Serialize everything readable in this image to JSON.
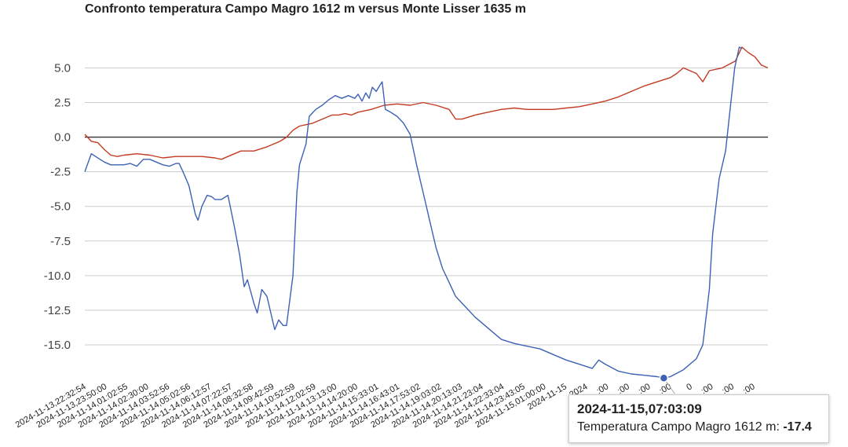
{
  "chart_data": {
    "type": "line",
    "title": "Confronto temperatura Campo Magro 1612 m versus Monte Lisser 1635 m",
    "ylim": [
      -17.5,
      6.5
    ],
    "yticks": [
      5.0,
      2.5,
      0.0,
      -2.5,
      -5.0,
      -7.5,
      -10.0,
      -12.5,
      -15.0
    ],
    "ytick_labels": [
      "5.0",
      "2.5",
      "0.0",
      "-2.5",
      "-5.0",
      "-7.5",
      "-10.0",
      "-12.5",
      "-15.0"
    ],
    "grid": true,
    "legend": "none",
    "x_labels": [
      "2024-11-13,22:32:54",
      "2024-11-13,23:50:00",
      "2024-11-14,01:02:55",
      "2024-11-14,02:30:00",
      "2024-11-14,03:52:56",
      "2024-11-14,05:02:56",
      "2024-11-14,06:12:57",
      "2024-11-14,07:22:57",
      "2024-11-14,08:32:58",
      "2024-11-14,09:42:59",
      "2024-11-14,10:52:59",
      "2024-11-14,12:02:59",
      "2024-11-14,13:13:00",
      "2024-11-14,14:20:00",
      "2024-11-14,15:33:01",
      "2024-11-14,16:43:01",
      "2024-11-14,17:53:02",
      "2024-11-14,19:03:02",
      "2024-11-14,20:13:03",
      "2024-11-14,21:23:04",
      "2024-11-14,22:33:04",
      "2024-11-14,23:43:05",
      "2024-11-15,01:00:00",
      "2024-11-15",
      "2024",
      ":00",
      ":00",
      ":00",
      ":00",
      "0",
      ":00",
      ":00",
      ":00"
    ],
    "series": [
      {
        "name": "Temperatura Campo Magro 1612 m",
        "color": "#3d61b5",
        "points": [
          [
            0,
            -2.5
          ],
          [
            1,
            -1.2
          ],
          [
            3,
            -1.8
          ],
          [
            4,
            -2.0
          ],
          [
            6,
            -2.0
          ],
          [
            7,
            -1.9
          ],
          [
            8,
            -2.1
          ],
          [
            9,
            -1.6
          ],
          [
            10,
            -1.6
          ],
          [
            11,
            -1.8
          ],
          [
            12,
            -2.0
          ],
          [
            13,
            -2.1
          ],
          [
            14,
            -1.9
          ],
          [
            14.5,
            -1.9
          ],
          [
            15,
            -2.4
          ],
          [
            16,
            -3.5
          ],
          [
            17,
            -5.6
          ],
          [
            17.4,
            -6.0
          ],
          [
            18,
            -5.0
          ],
          [
            18.8,
            -4.2
          ],
          [
            19.5,
            -4.3
          ],
          [
            20,
            -4.5
          ],
          [
            21,
            -4.5
          ],
          [
            22,
            -4.2
          ],
          [
            23,
            -6.5
          ],
          [
            23.8,
            -8.5
          ],
          [
            24.5,
            -10.8
          ],
          [
            25,
            -10.3
          ],
          [
            26,
            -12.0
          ],
          [
            26.5,
            -12.7
          ],
          [
            27.2,
            -11.0
          ],
          [
            28,
            -11.5
          ],
          [
            28.5,
            -12.5
          ],
          [
            29.2,
            -13.9
          ],
          [
            29.8,
            -13.2
          ],
          [
            30.5,
            -13.6
          ],
          [
            31,
            -13.6
          ],
          [
            32,
            -10.0
          ],
          [
            32.6,
            -4.0
          ],
          [
            33,
            -2.0
          ],
          [
            34,
            -0.5
          ],
          [
            34.5,
            1.5
          ],
          [
            35.5,
            2.0
          ],
          [
            36.5,
            2.3
          ],
          [
            37.5,
            2.7
          ],
          [
            38.5,
            3.0
          ],
          [
            39.5,
            2.8
          ],
          [
            40.5,
            3.0
          ],
          [
            41.5,
            2.8
          ],
          [
            42,
            3.1
          ],
          [
            42.6,
            2.6
          ],
          [
            43.2,
            3.2
          ],
          [
            43.7,
            2.8
          ],
          [
            44.2,
            3.6
          ],
          [
            44.8,
            3.3
          ],
          [
            45.3,
            3.7
          ],
          [
            45.7,
            4.0
          ],
          [
            46.2,
            2.0
          ],
          [
            47,
            1.8
          ],
          [
            48,
            1.5
          ],
          [
            49,
            1.0
          ],
          [
            50,
            0.2
          ],
          [
            51,
            -2.0
          ],
          [
            52,
            -4.0
          ],
          [
            53,
            -6.0
          ],
          [
            54,
            -8.0
          ],
          [
            55,
            -9.5
          ],
          [
            56,
            -10.5
          ],
          [
            57,
            -11.5
          ],
          [
            58,
            -12.0
          ],
          [
            60,
            -13.0
          ],
          [
            62,
            -13.8
          ],
          [
            64,
            -14.6
          ],
          [
            66,
            -14.9
          ],
          [
            68,
            -15.1
          ],
          [
            70,
            -15.3
          ],
          [
            72,
            -15.7
          ],
          [
            74,
            -16.1
          ],
          [
            76,
            -16.4
          ],
          [
            78,
            -16.7
          ],
          [
            79,
            -16.1
          ],
          [
            80,
            -16.4
          ],
          [
            82,
            -16.9
          ],
          [
            84,
            -17.1
          ],
          [
            86,
            -17.2
          ],
          [
            88,
            -17.3
          ],
          [
            89,
            -17.4
          ],
          [
            90,
            -17.3
          ],
          [
            92,
            -16.8
          ],
          [
            94,
            -16.0
          ],
          [
            95,
            -15.0
          ],
          [
            96,
            -11.0
          ],
          [
            96.5,
            -7.0
          ],
          [
            97.5,
            -3.0
          ],
          [
            98.5,
            -1.0
          ],
          [
            99.3,
            2.5
          ],
          [
            99.9,
            5.0
          ],
          [
            100.6,
            6.5
          ],
          [
            101,
            6.4
          ]
        ]
      },
      {
        "name": "Monte Lisser 1635 m",
        "color": "#c23b22",
        "points": [
          [
            0,
            0.2
          ],
          [
            1,
            -0.3
          ],
          [
            2,
            -0.4
          ],
          [
            3,
            -0.9
          ],
          [
            4,
            -1.3
          ],
          [
            5,
            -1.4
          ],
          [
            6,
            -1.3
          ],
          [
            8,
            -1.2
          ],
          [
            10,
            -1.3
          ],
          [
            12,
            -1.5
          ],
          [
            14,
            -1.4
          ],
          [
            16,
            -1.4
          ],
          [
            18,
            -1.4
          ],
          [
            20,
            -1.5
          ],
          [
            21,
            -1.6
          ],
          [
            22,
            -1.4
          ],
          [
            24,
            -1.0
          ],
          [
            26,
            -1.0
          ],
          [
            28,
            -0.7
          ],
          [
            30,
            -0.3
          ],
          [
            31,
            0.0
          ],
          [
            32,
            0.5
          ],
          [
            33,
            0.8
          ],
          [
            34,
            0.9
          ],
          [
            35,
            1.0
          ],
          [
            36,
            1.2
          ],
          [
            37,
            1.4
          ],
          [
            38,
            1.6
          ],
          [
            39,
            1.6
          ],
          [
            40,
            1.7
          ],
          [
            41,
            1.6
          ],
          [
            42,
            1.8
          ],
          [
            44,
            2.0
          ],
          [
            46,
            2.3
          ],
          [
            48,
            2.4
          ],
          [
            50,
            2.3
          ],
          [
            52,
            2.5
          ],
          [
            54,
            2.3
          ],
          [
            56,
            2.0
          ],
          [
            57,
            1.3
          ],
          [
            58,
            1.3
          ],
          [
            60,
            1.6
          ],
          [
            62,
            1.8
          ],
          [
            64,
            2.0
          ],
          [
            66,
            2.1
          ],
          [
            68,
            2.0
          ],
          [
            70,
            2.0
          ],
          [
            72,
            2.0
          ],
          [
            74,
            2.1
          ],
          [
            76,
            2.2
          ],
          [
            78,
            2.4
          ],
          [
            80,
            2.6
          ],
          [
            82,
            2.9
          ],
          [
            84,
            3.3
          ],
          [
            86,
            3.7
          ],
          [
            88,
            4.0
          ],
          [
            90,
            4.3
          ],
          [
            91,
            4.6
          ],
          [
            92,
            5.0
          ],
          [
            94,
            4.6
          ],
          [
            95,
            4.0
          ],
          [
            96,
            4.8
          ],
          [
            98,
            5.0
          ],
          [
            100,
            5.5
          ],
          [
            101,
            6.5
          ],
          [
            102,
            6.1
          ],
          [
            103,
            5.8
          ],
          [
            104,
            5.2
          ],
          [
            105,
            5.0
          ]
        ]
      }
    ],
    "x_domain": [
      0,
      105
    ],
    "highlight": {
      "series": 0,
      "x": 89,
      "y": -17.4
    }
  },
  "tooltip": {
    "date": "2024-11-15,07:03:09",
    "label": "Temperatura Campo Magro 1612 m: ",
    "value": "-17.4"
  }
}
